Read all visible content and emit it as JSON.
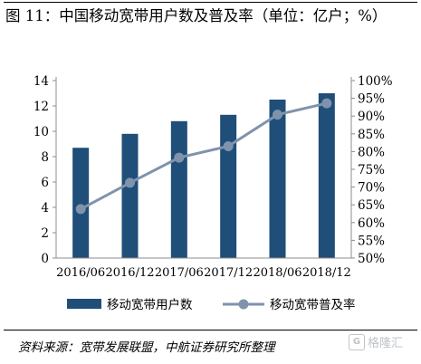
{
  "title": "图 11：中国移动宽带用户数及普及率（单位：亿户；%）",
  "source": "资料来源：宽带发展联盟，中航证券研究所整理",
  "watermark": "格隆汇",
  "colors": {
    "bar": "#1f4e79",
    "line": "#7f93ad",
    "marker": "#7f93ad",
    "axis": "#8c8c8c"
  },
  "chart_data": {
    "type": "bar+line",
    "categories": [
      "2016/06",
      "2016/12",
      "2017/06",
      "2017/12",
      "2018/06",
      "2018/12"
    ],
    "series": [
      {
        "name": "移动宽带用户数",
        "type": "bar",
        "axis": "left",
        "values": [
          8.7,
          9.8,
          10.8,
          11.3,
          12.5,
          13.0
        ]
      },
      {
        "name": "移动宽带普及率",
        "type": "line",
        "axis": "right",
        "values": [
          63.8,
          71.2,
          78.3,
          81.5,
          90.4,
          93.6
        ]
      }
    ],
    "y_left": {
      "ylim": [
        0,
        14
      ],
      "ticks": [
        "0",
        "2",
        "4",
        "6",
        "8",
        "10",
        "12",
        "14"
      ]
    },
    "y_right": {
      "ylim": [
        50,
        100
      ],
      "ticks": [
        "50%",
        "55%",
        "60%",
        "65%",
        "70%",
        "75%",
        "80%",
        "85%",
        "90%",
        "95%",
        "100%"
      ]
    },
    "legend_position": "bottom",
    "grid": false
  }
}
